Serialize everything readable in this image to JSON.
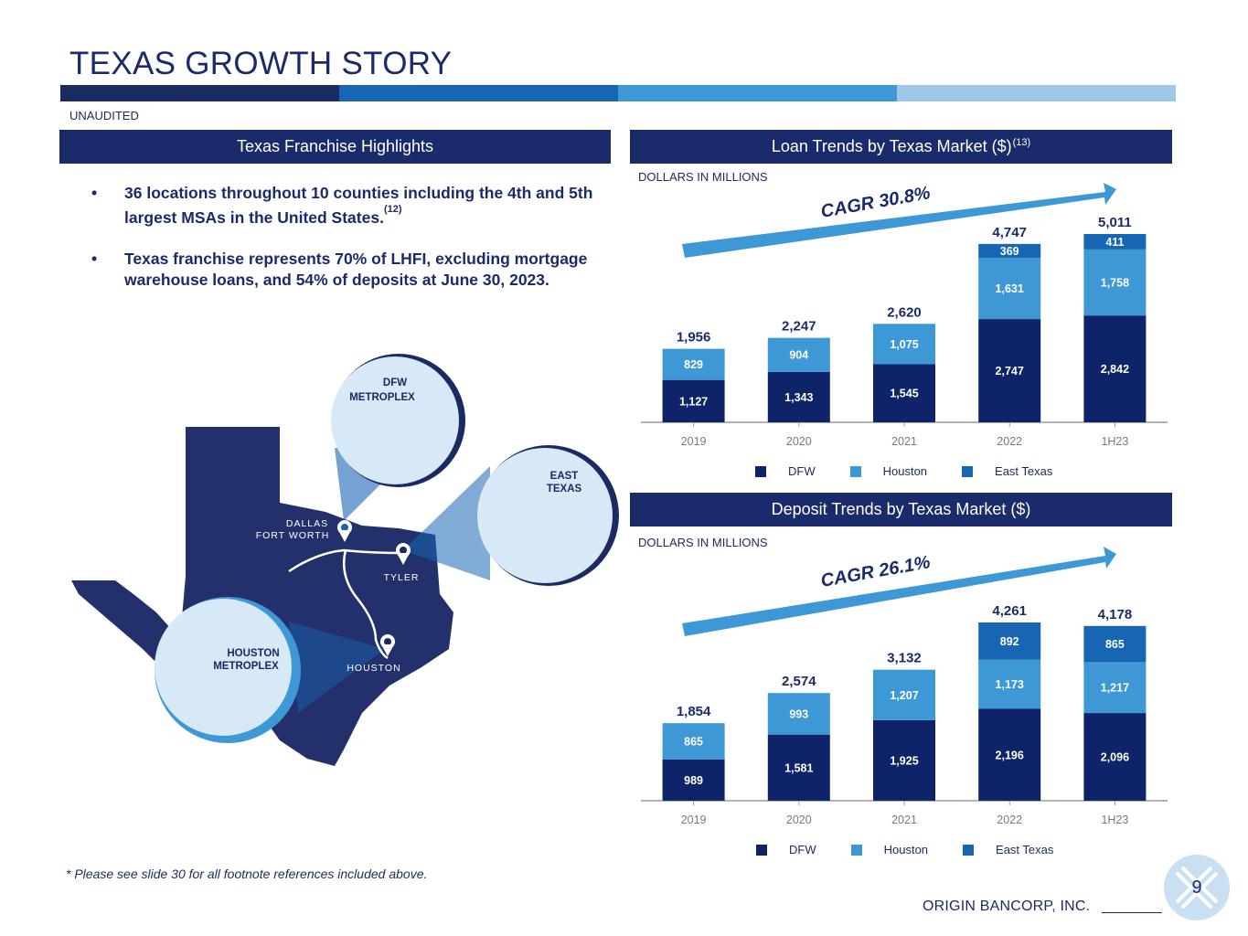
{
  "title": "TEXAS GROWTH STORY",
  "unaudited": "UNAUDITED",
  "colors": {
    "dfw": "#0f2468",
    "houston": "#3e98d6",
    "east_texas": "#1766b3",
    "stripe": [
      "#1c2a63",
      "#1766b3",
      "#3f98d6",
      "#9dc8ea"
    ]
  },
  "highlights": {
    "header": "Texas Franchise Highlights",
    "bullets": [
      {
        "marker": "•",
        "text": "36 locations throughout 10 counties including the 4th and 5th largest MSAs in the United States.",
        "sup": "(12)"
      },
      {
        "marker": "•",
        "text": "Texas franchise represents 70% of LHFI, excluding mortgage warehouse loans, and 54% of deposits at June 30, 2023.",
        "sup": ""
      }
    ]
  },
  "map": {
    "dfw_callout": [
      "DFW",
      "METROPLEX"
    ],
    "east_callout": [
      "EAST",
      "TEXAS"
    ],
    "houston_callout": [
      "HOUSTON",
      "METROPLEX"
    ],
    "city_dfw": [
      "DALLAS",
      "FORT WORTH"
    ],
    "city_tyler": "TYLER",
    "city_houston": "HOUSTON"
  },
  "loan": {
    "header": "Loan Trends by Texas Market ($)",
    "header_sup": "(13)",
    "units": "DOLLARS IN MILLIONS",
    "cagr": "CAGR 30.8%"
  },
  "deposit": {
    "header": "Deposit Trends by Texas Market ($)",
    "units": "DOLLARS IN MILLIONS",
    "cagr": "CAGR 26.1%"
  },
  "legend": {
    "dfw": "DFW",
    "houston": "Houston",
    "east_texas": "East Texas"
  },
  "chart_data": [
    {
      "type": "bar",
      "stacked": true,
      "title": "Loan Trends by Texas Market ($)",
      "ylabel": "DOLLARS IN MILLIONS",
      "categories": [
        "2019",
        "2020",
        "2021",
        "2022",
        "1H23"
      ],
      "series": [
        {
          "name": "DFW",
          "values": [
            1127,
            1343,
            1545,
            2747,
            2842
          ]
        },
        {
          "name": "Houston",
          "values": [
            829,
            904,
            1075,
            1631,
            1758
          ]
        },
        {
          "name": "East Texas",
          "values": [
            0,
            0,
            0,
            369,
            411
          ]
        }
      ],
      "totals": [
        1956,
        2247,
        2620,
        4747,
        5011
      ],
      "value_labels": {
        "DFW": [
          "1,127",
          "1,343",
          "1,545",
          "2,747",
          "2,842"
        ],
        "Houston": [
          "829",
          "904",
          "1,075",
          "1,631",
          "1,758"
        ],
        "East Texas": [
          "",
          "",
          "",
          "369",
          "411"
        ],
        "totals": [
          "1,956",
          "2,247",
          "2,620",
          "4,747",
          "5,011"
        ]
      },
      "ylim": [
        0,
        5011
      ],
      "annotation": "CAGR 30.8%",
      "legend": "bottom"
    },
    {
      "type": "bar",
      "stacked": true,
      "title": "Deposit Trends by Texas Market ($)",
      "ylabel": "DOLLARS IN MILLIONS",
      "categories": [
        "2019",
        "2020",
        "2021",
        "2022",
        "1H23"
      ],
      "series": [
        {
          "name": "DFW",
          "values": [
            989,
            1581,
            1925,
            2196,
            2096
          ]
        },
        {
          "name": "Houston",
          "values": [
            865,
            993,
            1207,
            1173,
            1217
          ]
        },
        {
          "name": "East Texas",
          "values": [
            0,
            0,
            0,
            892,
            865
          ]
        }
      ],
      "totals": [
        1854,
        2574,
        3132,
        4261,
        4178
      ],
      "value_labels": {
        "DFW": [
          "989",
          "1,581",
          "1,925",
          "2,196",
          "2,096"
        ],
        "Houston": [
          "865",
          "993",
          "1,207",
          "1,173",
          "1,217"
        ],
        "East Texas": [
          "",
          "",
          "",
          "892",
          "865"
        ],
        "totals": [
          "1,854",
          "2,574",
          "3,132",
          "4,261",
          "4,178"
        ]
      },
      "ylim": [
        0,
        4261
      ],
      "annotation": "CAGR 26.1%",
      "legend": "bottom"
    }
  ],
  "footnote": "* Please see slide 30 for all footnote references included above.",
  "company": "ORIGIN BANCORP, INC.",
  "page_number": "9"
}
